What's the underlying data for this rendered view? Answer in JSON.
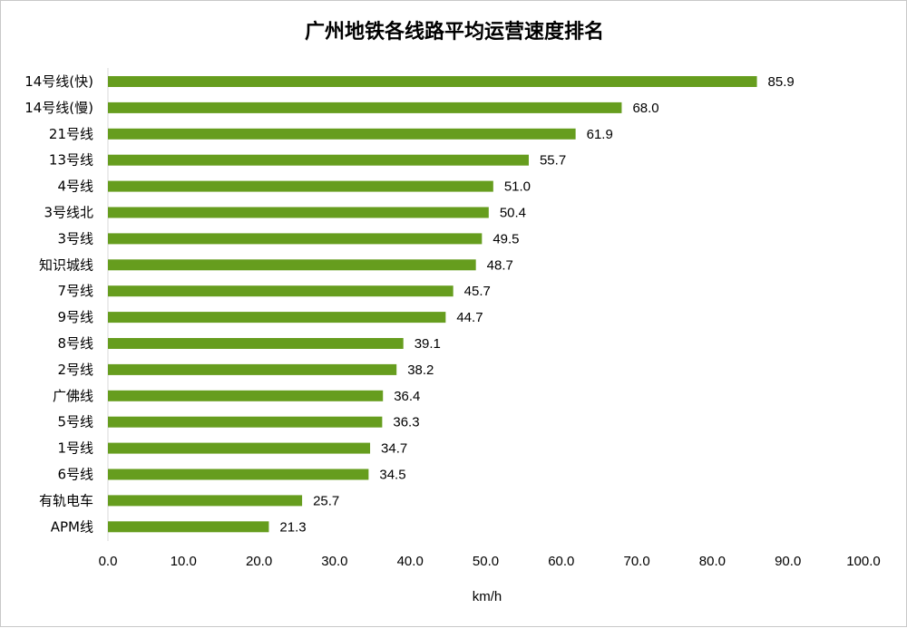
{
  "chart_data": {
    "type": "bar",
    "orientation": "horizontal",
    "title": "广州地铁各线路平均运营速度排名",
    "xlabel": "km/h",
    "ylabel": "",
    "xlim": [
      0,
      100
    ],
    "ticks": [
      "0.0",
      "10.0",
      "20.0",
      "30.0",
      "40.0",
      "50.0",
      "60.0",
      "70.0",
      "80.0",
      "90.0",
      "100.0"
    ],
    "grid": false,
    "legend": "none",
    "bar_color": "#669d1e",
    "categories": [
      "14号线(快)",
      "14号线(慢)",
      "21号线",
      "13号线",
      "4号线",
      "3号线北",
      "3号线",
      "知识城线",
      "7号线",
      "9号线",
      "8号线",
      "2号线",
      "广佛线",
      "5号线",
      "1号线",
      "6号线",
      "有轨电车",
      "APM线"
    ],
    "values": [
      85.9,
      68.0,
      61.9,
      55.7,
      51.0,
      50.4,
      49.5,
      48.7,
      45.7,
      44.7,
      39.1,
      38.2,
      36.4,
      36.3,
      34.7,
      34.5,
      25.7,
      21.3
    ],
    "value_labels": [
      "85.9",
      "68.0",
      "61.9",
      "55.7",
      "51.0",
      "50.4",
      "49.5",
      "48.7",
      "45.7",
      "44.7",
      "39.1",
      "38.2",
      "36.4",
      "36.3",
      "34.7",
      "34.5",
      "25.7",
      "21.3"
    ]
  }
}
